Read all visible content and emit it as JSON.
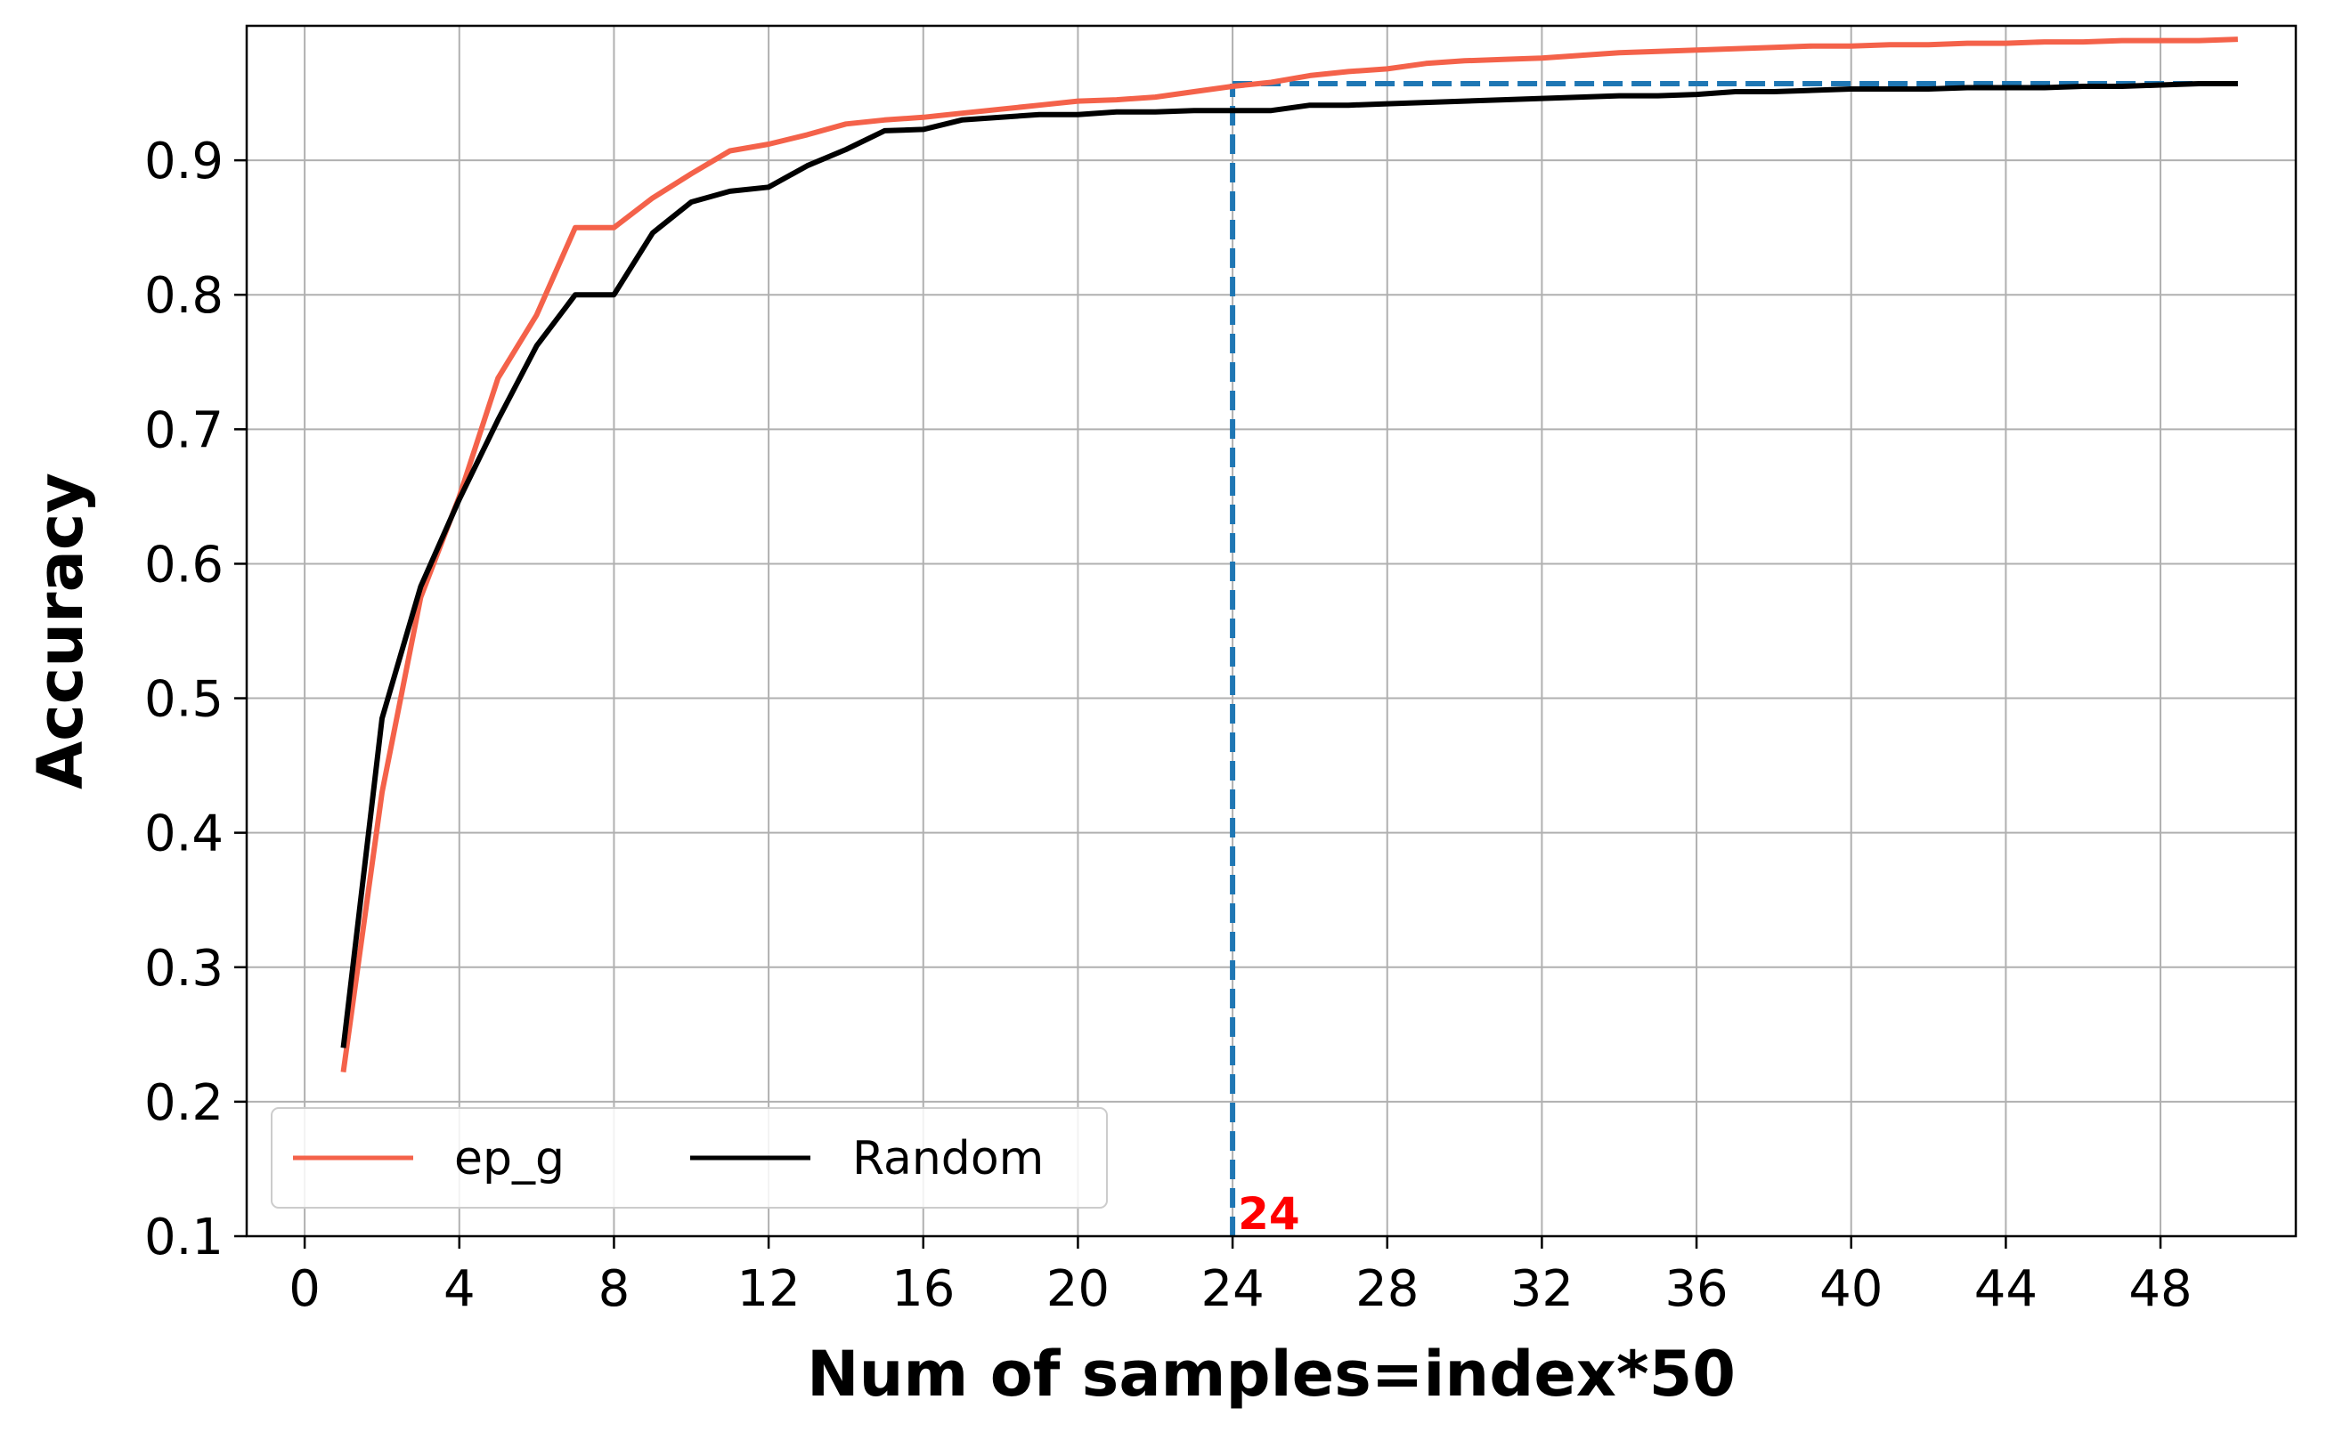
{
  "chart_data": {
    "type": "line",
    "title": "",
    "xlabel": "Num of samples=index*50",
    "ylabel": "Accuracy",
    "xlim": [
      -1.5,
      51.5
    ],
    "ylim": [
      0.1,
      1.0
    ],
    "xticks": [
      0,
      4,
      8,
      12,
      16,
      20,
      24,
      28,
      32,
      36,
      40,
      44,
      48
    ],
    "xtick_labels": [
      "0",
      "4",
      "8",
      "12",
      "16",
      "20",
      "24",
      "28",
      "32",
      "36",
      "40",
      "44",
      "48"
    ],
    "yticks": [
      0.1,
      0.2,
      0.3,
      0.4,
      0.5,
      0.6,
      0.7,
      0.8,
      0.9
    ],
    "ytick_labels": [
      "0.1",
      "0.2",
      "0.3",
      "0.4",
      "0.5",
      "0.6",
      "0.7",
      "0.8",
      "0.9"
    ],
    "grid": true,
    "legend": {
      "placement": "lower-left",
      "columns": 2
    },
    "x": [
      1,
      2,
      3,
      4,
      5,
      6,
      7,
      8,
      9,
      10,
      11,
      12,
      13,
      14,
      15,
      16,
      17,
      18,
      19,
      20,
      21,
      22,
      23,
      24,
      25,
      26,
      27,
      28,
      29,
      30,
      31,
      32,
      33,
      34,
      35,
      36,
      37,
      38,
      39,
      40,
      41,
      42,
      43,
      44,
      45,
      46,
      47,
      48,
      49,
      50
    ],
    "series": [
      {
        "name": "ep_g",
        "color": "#f4624a",
        "values": [
          0.222,
          0.43,
          0.575,
          0.65,
          0.738,
          0.785,
          0.85,
          0.85,
          0.872,
          0.89,
          0.907,
          0.912,
          0.919,
          0.927,
          0.93,
          0.932,
          0.935,
          0.938,
          0.941,
          0.944,
          0.945,
          0.947,
          0.951,
          0.955,
          0.958,
          0.963,
          0.966,
          0.968,
          0.972,
          0.974,
          0.975,
          0.976,
          0.978,
          0.98,
          0.981,
          0.982,
          0.983,
          0.984,
          0.985,
          0.985,
          0.986,
          0.986,
          0.987,
          0.987,
          0.988,
          0.988,
          0.989,
          0.989,
          0.989,
          0.99
        ]
      },
      {
        "name": "Random",
        "color": "#000000",
        "values": [
          0.24,
          0.485,
          0.583,
          0.648,
          0.707,
          0.762,
          0.8,
          0.8,
          0.846,
          0.869,
          0.877,
          0.88,
          0.896,
          0.908,
          0.922,
          0.923,
          0.93,
          0.932,
          0.934,
          0.934,
          0.936,
          0.936,
          0.937,
          0.937,
          0.937,
          0.941,
          0.941,
          0.942,
          0.943,
          0.944,
          0.945,
          0.946,
          0.947,
          0.948,
          0.948,
          0.949,
          0.951,
          0.951,
          0.952,
          0.953,
          0.953,
          0.953,
          0.954,
          0.954,
          0.954,
          0.955,
          0.955,
          0.956,
          0.957,
          0.957
        ]
      }
    ],
    "annotations": {
      "marker_x": 24,
      "marker_y": 0.957,
      "marker_color": "#1f77b4",
      "label": "24",
      "label_color": "#ff0000"
    }
  }
}
